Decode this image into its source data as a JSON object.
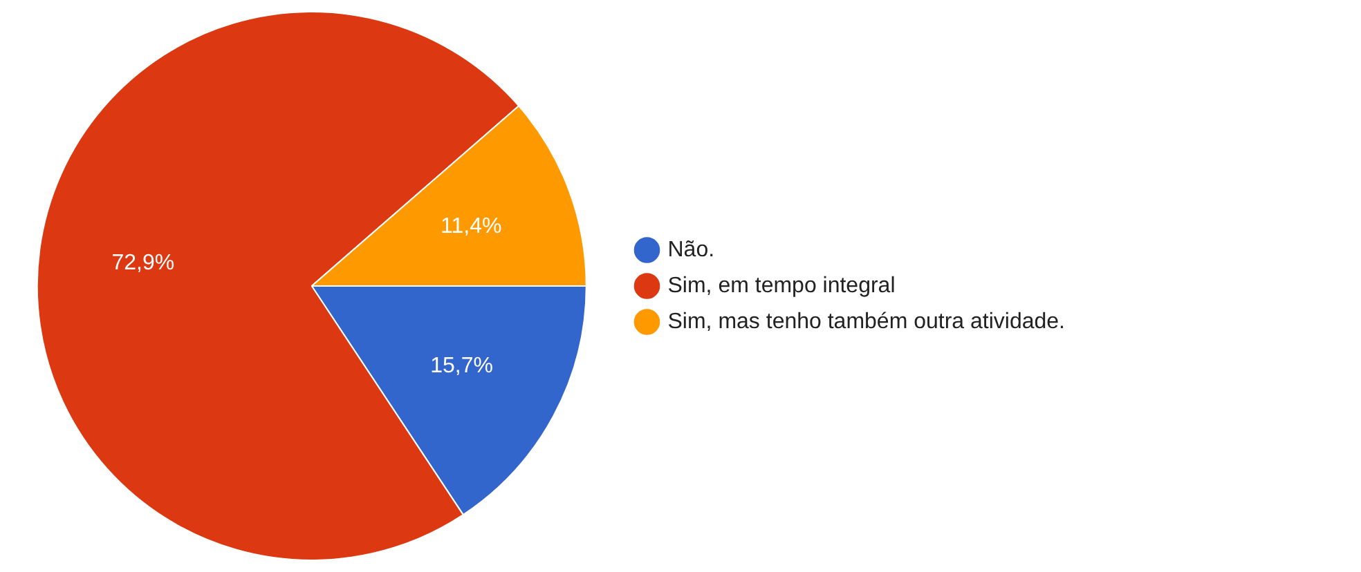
{
  "chart_data": {
    "type": "pie",
    "categories": [
      "Não.",
      "Sim, em tempo integral",
      "Sim, mas tenho também outra atividade."
    ],
    "values": [
      15.7,
      72.9,
      11.4
    ],
    "value_labels": [
      "15,7%",
      "72,9%",
      "11,4%"
    ],
    "colors": [
      "#3366cc",
      "#dc3912",
      "#ff9900"
    ],
    "legend": "right"
  }
}
